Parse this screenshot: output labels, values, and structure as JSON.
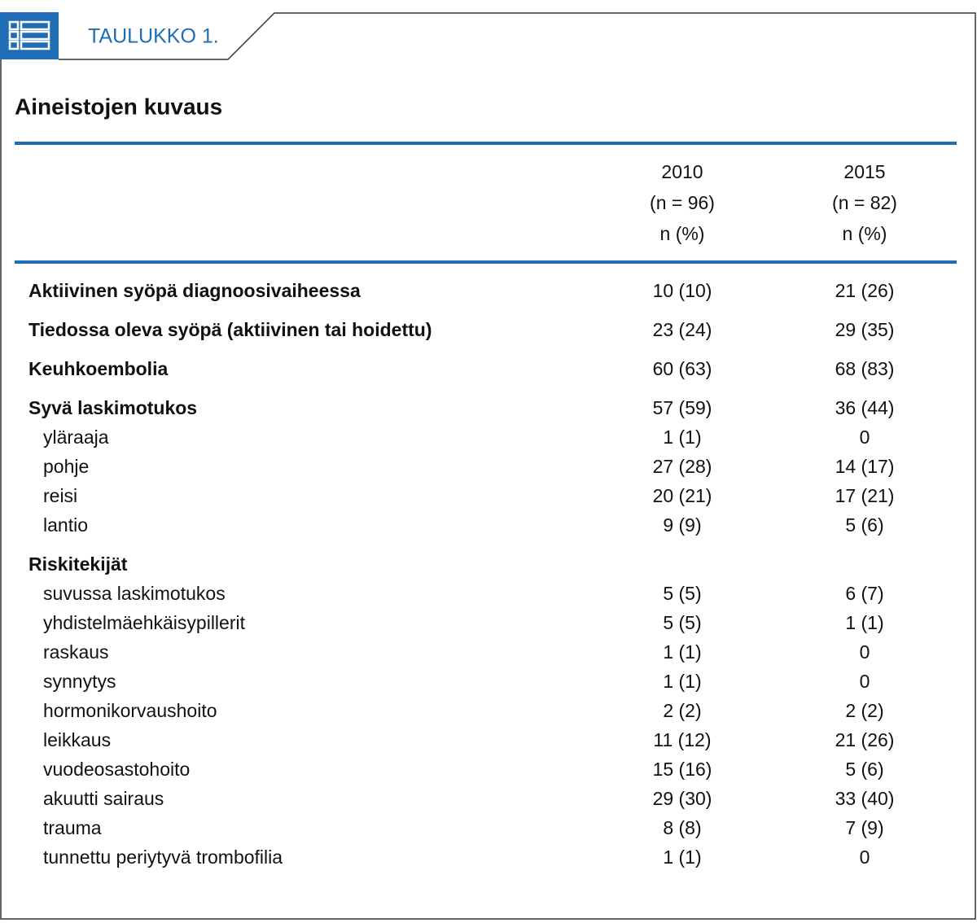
{
  "header": {
    "label": "TAULUKKO 1.",
    "title": "Aineistojen kuvaus"
  },
  "table": {
    "columns": [
      {
        "lines": [
          "2010",
          "(n = 96)",
          "n (%)"
        ]
      },
      {
        "lines": [
          "2015",
          "(n = 82)",
          "n (%)"
        ]
      }
    ],
    "groups": [
      {
        "label": "Aktiivinen syöpä diagnoosivaiheessa",
        "values": [
          "10 (10)",
          "21 (26)"
        ]
      },
      {
        "label": "Tiedossa oleva syöpä (aktiivinen tai hoidettu)",
        "values": [
          "23 (24)",
          "29 (35)"
        ]
      },
      {
        "label": "Keuhkoembolia",
        "values": [
          "60 (63)",
          "68 (83)"
        ]
      },
      {
        "label": "Syvä laskimotukos",
        "values": [
          "57 (59)",
          "36 (44)"
        ],
        "subrows": [
          {
            "label": "yläraaja",
            "values": [
              "1 (1)",
              "0"
            ]
          },
          {
            "label": "pohje",
            "values": [
              "27 (28)",
              "14 (17)"
            ]
          },
          {
            "label": "reisi",
            "values": [
              "20 (21)",
              "17 (21)"
            ]
          },
          {
            "label": "lantio",
            "values": [
              "9 (9)",
              "5 (6)"
            ]
          }
        ]
      },
      {
        "label": "Riskitekijät",
        "subrows": [
          {
            "label": "suvussa laskimotukos",
            "values": [
              "5 (5)",
              "6 (7)"
            ]
          },
          {
            "label": "yhdistelmäehkäisypillerit",
            "values": [
              "5 (5)",
              "1 (1)"
            ]
          },
          {
            "label": "raskaus",
            "values": [
              "1 (1)",
              "0"
            ]
          },
          {
            "label": "synnytys",
            "values": [
              "1 (1)",
              "0"
            ]
          },
          {
            "label": "hormonikorvaushoito",
            "values": [
              "2 (2)",
              "2 (2)"
            ]
          },
          {
            "label": "leikkaus",
            "values": [
              "11 (12)",
              "21 (26)"
            ]
          },
          {
            "label": "vuodeosastohoito",
            "values": [
              "15 (16)",
              "5 (6)"
            ]
          },
          {
            "label": "akuutti sairaus",
            "values": [
              "29 (30)",
              "33 (40)"
            ]
          },
          {
            "label": "trauma",
            "values": [
              "8 (8)",
              "7 (9)"
            ]
          },
          {
            "label": "tunnettu periytyvä trombofilia",
            "values": [
              "1 (1)",
              "0"
            ]
          }
        ]
      }
    ]
  }
}
